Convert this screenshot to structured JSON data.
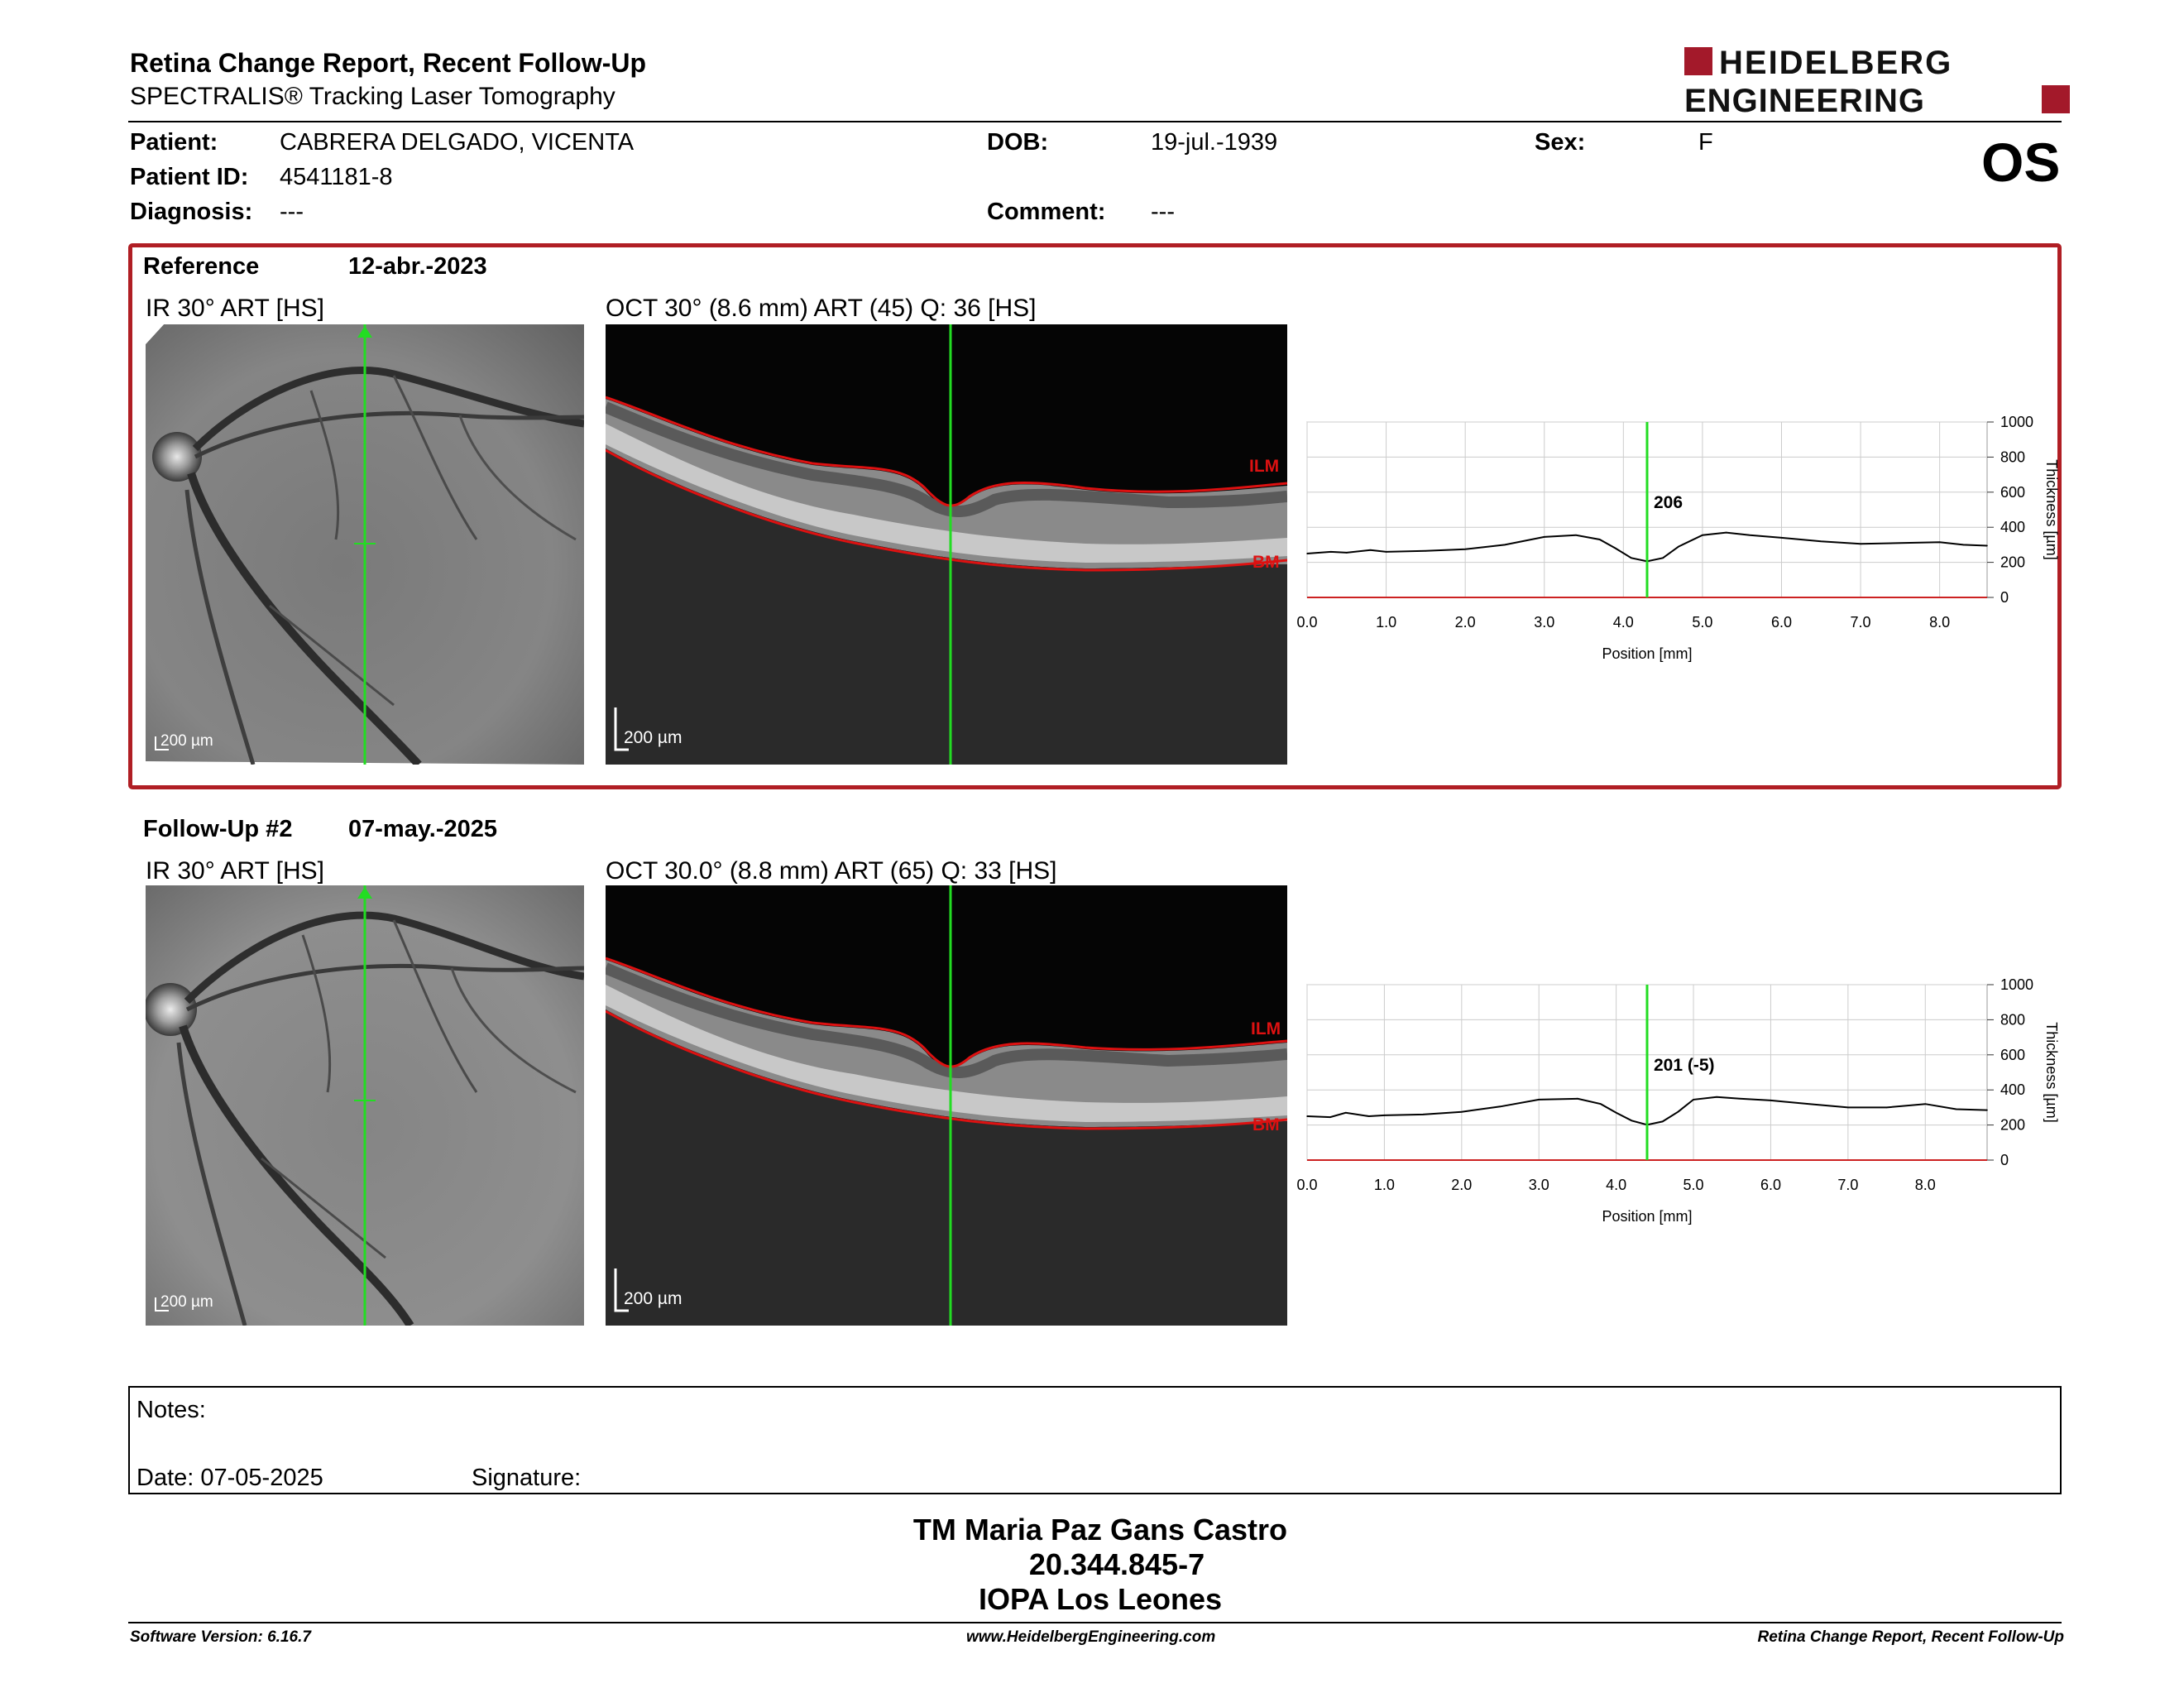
{
  "header": {
    "title": "Retina Change Report, Recent Follow-Up",
    "subtitle": "SPECTRALIS® Tracking Laser Tomography",
    "logo_line1": "HEIDELBERG",
    "logo_line2": "ENGINEERING",
    "eye": "OS"
  },
  "patient": {
    "patient_label": "Patient:",
    "patient_value": "CABRERA DELGADO, VICENTA",
    "id_label": "Patient ID:",
    "id_value": "4541181-8",
    "diagnosis_label": "Diagnosis:",
    "diagnosis_value": "---",
    "dob_label": "DOB:",
    "dob_value": "19-jul.-1939",
    "comment_label": "Comment:",
    "comment_value": "---",
    "sex_label": "Sex:",
    "sex_value": "F"
  },
  "reference": {
    "label": "Reference",
    "date": "12-abr.-2023",
    "ir_caption": "IR 30° ART [HS]",
    "oct_caption": "OCT 30° (8.6 mm) ART (45) Q: 36 [HS]",
    "ir_scale": "200 µm",
    "oct_scale": "200 µm",
    "ilm_label": "ILM",
    "bm_label": "BM"
  },
  "followup": {
    "label": "Follow-Up #2",
    "date": "07-may.-2025",
    "ir_caption": "IR 30° ART [HS]",
    "oct_caption": "OCT 30.0° (8.8 mm) ART (65) Q: 33 [HS]",
    "ir_scale": "200 µm",
    "oct_scale": "200 µm",
    "ilm_label": "ILM",
    "bm_label": "BM"
  },
  "chart_data": [
    {
      "type": "line",
      "title": "",
      "xlabel": "Position [mm]",
      "ylabel": "Thickness [µm]",
      "xlim": [
        0,
        8.6
      ],
      "ylim": [
        0,
        1000
      ],
      "xticks": [
        "0.0",
        "1.0",
        "2.0",
        "3.0",
        "4.0",
        "5.0",
        "6.0",
        "7.0",
        "8.0"
      ],
      "yticks": [
        "0",
        "200",
        "400",
        "600",
        "800",
        "1000"
      ],
      "grid": true,
      "marker_x": 4.3,
      "marker_label": "206",
      "x": [
        0.0,
        0.3,
        0.5,
        0.8,
        1.0,
        1.5,
        2.0,
        2.5,
        3.0,
        3.4,
        3.7,
        3.9,
        4.1,
        4.3,
        4.5,
        4.7,
        5.0,
        5.3,
        5.6,
        6.0,
        6.5,
        7.0,
        7.5,
        8.0,
        8.3,
        8.6
      ],
      "values": [
        250,
        260,
        255,
        270,
        260,
        265,
        275,
        300,
        345,
        355,
        330,
        280,
        225,
        206,
        225,
        290,
        355,
        370,
        355,
        340,
        320,
        305,
        310,
        315,
        300,
        295
      ]
    },
    {
      "type": "line",
      "title": "",
      "xlabel": "Position [mm]",
      "ylabel": "Thickness [µm]",
      "xlim": [
        0,
        8.8
      ],
      "ylim": [
        0,
        1000
      ],
      "xticks": [
        "0.0",
        "1.0",
        "2.0",
        "3.0",
        "4.0",
        "5.0",
        "6.0",
        "7.0",
        "8.0"
      ],
      "yticks": [
        "0",
        "200",
        "400",
        "600",
        "800",
        "1000"
      ],
      "grid": true,
      "marker_x": 4.4,
      "marker_label": "201 (-5)",
      "x": [
        0.0,
        0.3,
        0.5,
        0.8,
        1.0,
        1.5,
        2.0,
        2.5,
        3.0,
        3.5,
        3.8,
        4.0,
        4.2,
        4.4,
        4.6,
        4.8,
        5.0,
        5.3,
        5.6,
        6.0,
        6.5,
        7.0,
        7.5,
        8.0,
        8.4,
        8.8
      ],
      "values": [
        250,
        245,
        270,
        250,
        255,
        260,
        275,
        305,
        345,
        350,
        320,
        270,
        225,
        201,
        220,
        275,
        345,
        360,
        350,
        340,
        320,
        300,
        300,
        320,
        290,
        285
      ]
    }
  ],
  "notes": {
    "notes_label": "Notes:",
    "date_label": "Date: 07-05-2025",
    "signature_label": "Signature:"
  },
  "signature": {
    "name": "TM Maria Paz Gans Castro",
    "rut": "20.344.845-7",
    "institution": "IOPA Los Leones"
  },
  "footer": {
    "software": "Software Version: 6.16.7",
    "url": "www.HeidelbergEngineering.com",
    "report": "Retina Change Report, Recent Follow-Up"
  }
}
